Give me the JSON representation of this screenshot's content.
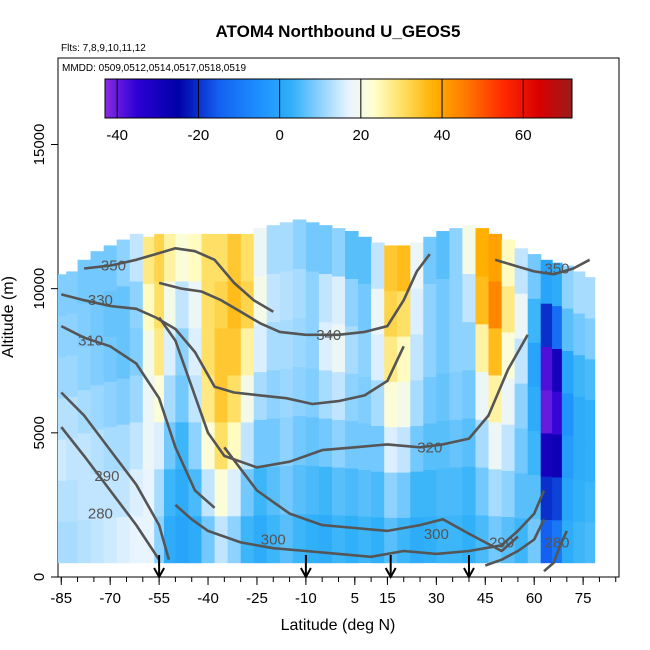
{
  "chart_data": {
    "type": "heatmap",
    "title": "ATOM4 Northbound U_GEOS5",
    "subtitle_flights": "Flts: 7,8,9,10,11,12",
    "subtitle_dates": "MMDD: 0509,0512,0514,0517,0518,0519",
    "xlabel": "Latitude (deg N)",
    "ylabel": "Altitude (m)",
    "xlim": [
      -86,
      86
    ],
    "ylim": [
      0,
      18000
    ],
    "x_ticks": [
      -85,
      -70,
      -55,
      -40,
      -25,
      -10,
      5,
      15,
      30,
      45,
      60,
      75
    ],
    "x_minor_step": 5,
    "y_ticks": [
      0,
      5000,
      10000,
      15000
    ],
    "colorbar": {
      "range": [
        -43,
        72
      ],
      "ticks": [
        -40,
        -20,
        0,
        20,
        40,
        60
      ],
      "colors": [
        {
          "v": -43,
          "c": "#8a2be2"
        },
        {
          "v": -35,
          "c": "#2b00d4"
        },
        {
          "v": -25,
          "c": "#0000a8"
        },
        {
          "v": -15,
          "c": "#1460f0"
        },
        {
          "v": -5,
          "c": "#1e90ff"
        },
        {
          "v": 3,
          "c": "#30b0f8"
        },
        {
          "v": 10,
          "c": "#8ed2ff"
        },
        {
          "v": 17,
          "c": "#e8f4ff"
        },
        {
          "v": 23,
          "c": "#ffffd0"
        },
        {
          "v": 30,
          "c": "#ffe066"
        },
        {
          "v": 38,
          "c": "#ffb000"
        },
        {
          "v": 46,
          "c": "#ff7800"
        },
        {
          "v": 55,
          "c": "#ff2a00"
        },
        {
          "v": 64,
          "c": "#d80000"
        },
        {
          "v": 72,
          "c": "#9a1c1c"
        }
      ]
    },
    "wind_columns": [
      {
        "lat": -85,
        "top": 10500,
        "u": [
          12,
          13,
          15,
          13,
          11,
          10,
          9
        ]
      },
      {
        "lat": -82,
        "top": 10600,
        "u": [
          12,
          13,
          14,
          13,
          11,
          10,
          9
        ]
      },
      {
        "lat": -78,
        "top": 11000,
        "u": [
          13,
          14,
          14,
          12,
          10,
          9,
          8
        ]
      },
      {
        "lat": -74,
        "top": 11300,
        "u": [
          14,
          14,
          13,
          11,
          9,
          8,
          8
        ]
      },
      {
        "lat": -70,
        "top": 11500,
        "u": [
          15,
          14,
          12,
          10,
          8,
          7,
          8
        ]
      },
      {
        "lat": -66,
        "top": 11700,
        "u": [
          16,
          14,
          12,
          9,
          7,
          7,
          10
        ]
      },
      {
        "lat": -62,
        "top": 11900,
        "u": [
          17,
          16,
          14,
          11,
          9,
          10,
          14
        ]
      },
      {
        "lat": -58,
        "top": 11800,
        "u": [
          17,
          17,
          18,
          18,
          20,
          24,
          28
        ]
      },
      {
        "lat": -55,
        "top": 11900,
        "u": [
          10,
          12,
          16,
          22,
          28,
          30,
          32
        ]
      },
      {
        "lat": -52,
        "top": 11900,
        "u": [
          2,
          4,
          8,
          12,
          16,
          20,
          26
        ]
      },
      {
        "lat": -48,
        "top": 11900,
        "u": [
          0,
          2,
          4,
          8,
          10,
          14,
          22
        ]
      },
      {
        "lat": -44,
        "top": 11900,
        "u": [
          2,
          5,
          10,
          14,
          16,
          18,
          24
        ]
      },
      {
        "lat": -40,
        "top": 11900,
        "u": [
          8,
          14,
          22,
          28,
          30,
          30,
          30
        ]
      },
      {
        "lat": -36,
        "top": 11900,
        "u": [
          14,
          22,
          30,
          34,
          34,
          32,
          30
        ]
      },
      {
        "lat": -32,
        "top": 11900,
        "u": [
          10,
          16,
          24,
          30,
          34,
          36,
          34
        ]
      },
      {
        "lat": -28,
        "top": 11900,
        "u": [
          4,
          8,
          14,
          20,
          26,
          32,
          30
        ]
      },
      {
        "lat": -24,
        "top": 12100,
        "u": [
          2,
          4,
          8,
          12,
          16,
          20,
          18
        ]
      },
      {
        "lat": -20,
        "top": 12200,
        "u": [
          4,
          6,
          8,
          10,
          12,
          14,
          12
        ]
      },
      {
        "lat": -16,
        "top": 12300,
        "u": [
          6,
          8,
          10,
          11,
          12,
          13,
          12
        ]
      },
      {
        "lat": -12,
        "top": 12400,
        "u": [
          4,
          6,
          8,
          10,
          11,
          12,
          10
        ]
      },
      {
        "lat": -8,
        "top": 12300,
        "u": [
          3,
          5,
          7,
          9,
          10,
          10,
          8
        ]
      },
      {
        "lat": -4,
        "top": 12200,
        "u": [
          2,
          4,
          8,
          12,
          16,
          14,
          8
        ]
      },
      {
        "lat": 0,
        "top": 12100,
        "u": [
          4,
          6,
          10,
          14,
          18,
          16,
          10
        ]
      },
      {
        "lat": 4,
        "top": 12000,
        "u": [
          3,
          5,
          8,
          10,
          12,
          10,
          6
        ]
      },
      {
        "lat": 8,
        "top": 11800,
        "u": [
          4,
          6,
          8,
          9,
          10,
          8,
          6
        ]
      },
      {
        "lat": 12,
        "top": 11600,
        "u": [
          3,
          5,
          8,
          12,
          16,
          18,
          14
        ]
      },
      {
        "lat": 16,
        "top": 11500,
        "u": [
          6,
          10,
          16,
          22,
          28,
          32,
          34
        ]
      },
      {
        "lat": 20,
        "top": 11500,
        "u": [
          4,
          8,
          14,
          20,
          24,
          30,
          36
        ]
      },
      {
        "lat": 24,
        "top": 11600,
        "u": [
          2,
          4,
          8,
          12,
          14,
          16,
          18
        ]
      },
      {
        "lat": 28,
        "top": 11800,
        "u": [
          3,
          4,
          6,
          8,
          10,
          10,
          8
        ]
      },
      {
        "lat": 32,
        "top": 12000,
        "u": [
          4,
          5,
          6,
          7,
          8,
          8,
          6
        ]
      },
      {
        "lat": 36,
        "top": 12100,
        "u": [
          4,
          5,
          7,
          9,
          10,
          10,
          10
        ]
      },
      {
        "lat": 40,
        "top": 12200,
        "u": [
          3,
          4,
          6,
          8,
          10,
          14,
          20
        ]
      },
      {
        "lat": 44,
        "top": 12100,
        "u": [
          5,
          8,
          12,
          18,
          26,
          36,
          38
        ]
      },
      {
        "lat": 48,
        "top": 11900,
        "u": [
          8,
          12,
          18,
          26,
          36,
          44,
          40
        ]
      },
      {
        "lat": 52,
        "top": 11700,
        "u": [
          6,
          10,
          14,
          18,
          22,
          28,
          24
        ]
      },
      {
        "lat": 56,
        "top": 11400,
        "u": [
          4,
          6,
          8,
          10,
          14,
          18,
          14
        ]
      },
      {
        "lat": 60,
        "top": 11200,
        "u": [
          8,
          6,
          4,
          2,
          0,
          4,
          8
        ]
      },
      {
        "lat": 64,
        "top": 11000,
        "u": [
          -15,
          -20,
          -30,
          -40,
          -38,
          -20,
          0
        ]
      },
      {
        "lat": 67,
        "top": 10900,
        "u": [
          -10,
          -18,
          -28,
          -36,
          -30,
          -12,
          2
        ]
      },
      {
        "lat": 70,
        "top": 10800,
        "u": [
          2,
          0,
          -2,
          -4,
          0,
          6,
          10
        ]
      },
      {
        "lat": 74,
        "top": 10600,
        "u": [
          4,
          3,
          2,
          2,
          4,
          8,
          12
        ]
      },
      {
        "lat": 77,
        "top": 10400,
        "u": [
          5,
          4,
          3,
          3,
          5,
          9,
          12
        ]
      }
    ],
    "theta_contours": [
      {
        "label": "280",
        "label_at": [
          -73,
          2200
        ],
        "points": [
          [
            -85,
            5200
          ],
          [
            -78,
            4200
          ],
          [
            -70,
            3000
          ],
          [
            -62,
            1800
          ],
          [
            -55,
            600
          ]
        ]
      },
      {
        "label": "290",
        "label_at": [
          -71,
          3500
        ],
        "points": [
          [
            -85,
            6400
          ],
          [
            -78,
            5600
          ],
          [
            -70,
            4400
          ],
          [
            -62,
            3200
          ],
          [
            -55,
            1800
          ],
          [
            -52,
            600
          ]
        ]
      },
      {
        "label": "300",
        "label_at": [
          -20,
          1300
        ],
        "points": [
          [
            -50,
            2500
          ],
          [
            -45,
            2000
          ],
          [
            -40,
            1600
          ],
          [
            -30,
            1200
          ],
          [
            -20,
            1000
          ],
          [
            -10,
            900
          ],
          [
            0,
            800
          ],
          [
            10,
            700
          ],
          [
            20,
            900
          ],
          [
            30,
            800
          ],
          [
            40,
            900
          ],
          [
            50,
            1100
          ],
          [
            55,
            1600
          ],
          [
            60,
            2200
          ],
          [
            63,
            3000
          ]
        ]
      },
      {
        "label": "300",
        "label_at": [
          30,
          1500
        ],
        "points": [
          [
            -35,
            4500
          ],
          [
            -25,
            3000
          ],
          [
            -15,
            2200
          ],
          [
            -5,
            1800
          ],
          [
            5,
            1700
          ],
          [
            15,
            1600
          ],
          [
            25,
            1800
          ],
          [
            32,
            2000
          ],
          [
            40,
            1500
          ],
          [
            45,
            1200
          ],
          [
            50,
            900
          ],
          [
            55,
            1400
          ]
        ]
      },
      {
        "label": "290",
        "label_at": [
          50,
          1200
        ],
        "points": [
          [
            45,
            400
          ],
          [
            50,
            600
          ],
          [
            55,
            900
          ],
          [
            60,
            1300
          ],
          [
            63,
            2000
          ]
        ]
      },
      {
        "label": "280",
        "label_at": [
          67,
          1200
        ],
        "points": [
          [
            63,
            200
          ],
          [
            66,
            500
          ],
          [
            68,
            1100
          ],
          [
            70,
            1600
          ]
        ]
      },
      {
        "label": "310",
        "label_at": [
          -76,
          8200
        ],
        "points": [
          [
            -85,
            8700
          ],
          [
            -78,
            8300
          ],
          [
            -70,
            8000
          ],
          [
            -62,
            7400
          ],
          [
            -55,
            6200
          ],
          [
            -50,
            4500
          ],
          [
            -44,
            3000
          ],
          [
            -38,
            2400
          ]
        ]
      },
      {
        "label": "320",
        "label_at": [
          28,
          4500
        ],
        "points": [
          [
            -55,
            9000
          ],
          [
            -50,
            8200
          ],
          [
            -45,
            6600
          ],
          [
            -40,
            5000
          ],
          [
            -35,
            4200
          ],
          [
            -25,
            3800
          ],
          [
            -15,
            4000
          ],
          [
            -5,
            4400
          ],
          [
            5,
            4500
          ],
          [
            15,
            4600
          ],
          [
            25,
            4500
          ],
          [
            32,
            4600
          ],
          [
            40,
            4800
          ],
          [
            46,
            5600
          ],
          [
            52,
            7200
          ],
          [
            58,
            8400
          ]
        ]
      },
      {
        "label": "330",
        "label_at": [
          -73,
          9600
        ],
        "points": [
          [
            -85,
            9800
          ],
          [
            -78,
            9600
          ],
          [
            -70,
            9400
          ],
          [
            -62,
            9300
          ],
          [
            -56,
            9000
          ],
          [
            -50,
            8600
          ],
          [
            -44,
            7800
          ],
          [
            -38,
            6600
          ],
          [
            -32,
            6400
          ],
          [
            -24,
            6300
          ],
          [
            -16,
            6200
          ],
          [
            -8,
            6000
          ],
          [
            0,
            6100
          ],
          [
            8,
            6300
          ],
          [
            15,
            6800
          ],
          [
            20,
            8000
          ]
        ]
      },
      {
        "label": "340",
        "label_at": [
          -3,
          8400
        ],
        "points": [
          [
            -55,
            10200
          ],
          [
            -48,
            10000
          ],
          [
            -42,
            9900
          ],
          [
            -36,
            9600
          ],
          [
            -30,
            9200
          ],
          [
            -24,
            8800
          ],
          [
            -18,
            8500
          ],
          [
            -10,
            8400
          ],
          [
            0,
            8400
          ],
          [
            8,
            8500
          ],
          [
            15,
            8700
          ],
          [
            20,
            9600
          ],
          [
            24,
            10600
          ],
          [
            28,
            11200
          ]
        ]
      },
      {
        "label": "350",
        "label_at": [
          -69,
          10800
        ],
        "points": [
          [
            -78,
            10700
          ],
          [
            -70,
            10800
          ],
          [
            -62,
            11000
          ],
          [
            -56,
            11200
          ],
          [
            -50,
            11400
          ],
          [
            -44,
            11300
          ],
          [
            -38,
            11000
          ],
          [
            -32,
            10200
          ],
          [
            -26,
            9600
          ],
          [
            -20,
            9200
          ]
        ]
      },
      {
        "label": "350",
        "label_at": [
          67,
          10700
        ],
        "points": [
          [
            48,
            11000
          ],
          [
            54,
            10800
          ],
          [
            60,
            10600
          ],
          [
            66,
            10500
          ],
          [
            72,
            10700
          ],
          [
            77,
            11000
          ]
        ]
      }
    ],
    "flight_markers_lat": [
      -55,
      -10,
      16,
      40
    ]
  }
}
